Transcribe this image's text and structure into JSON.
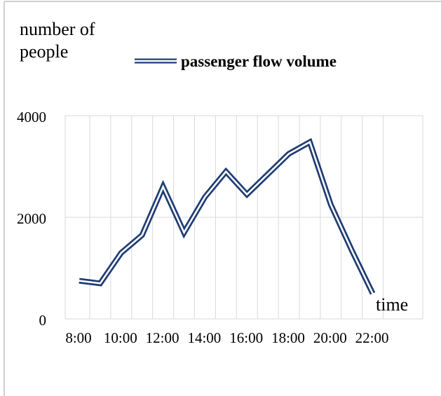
{
  "chart_data": {
    "type": "line",
    "ylabel_lines": [
      "number of",
      "people"
    ],
    "xlabel": "time",
    "legend": {
      "label": "passenger flow volume",
      "placement": "top"
    },
    "x": [
      "8:00",
      "9:00",
      "10:00",
      "11:00",
      "12:00",
      "13:00",
      "14:00",
      "15:00",
      "16:00",
      "17:00",
      "18:00",
      "19:00",
      "20:00",
      "21:00",
      "22:00"
    ],
    "x_tick_labels": [
      "8:00",
      "",
      "10:00",
      "",
      "12:00",
      "",
      "14:00",
      "",
      "16:00",
      "",
      "18:00",
      "",
      "20:00",
      "",
      "22:00"
    ],
    "y_tick_labels": [
      "0",
      "2000",
      "4000"
    ],
    "ylim": [
      0,
      4000
    ],
    "grid": {
      "vertical": true,
      "horizontal": true
    },
    "series": [
      {
        "name": "passenger flow volume",
        "values": [
          750,
          700,
          1300,
          1650,
          2600,
          1700,
          2400,
          2900,
          2450,
          2850,
          3250,
          3480,
          2250,
          1350,
          500
        ]
      }
    ],
    "colors": {
      "line": "#1f3c73",
      "grid": "#d9d9d9"
    }
  }
}
